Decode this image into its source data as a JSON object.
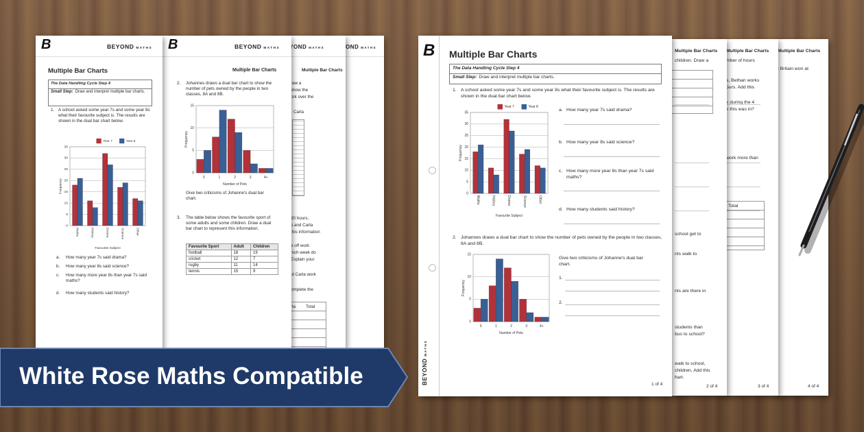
{
  "banner": {
    "text": "White Rose Maths Compatible"
  },
  "brand": {
    "logo": "B",
    "name": "BEYOND",
    "sub": "MATHS"
  },
  "worksheet": {
    "title": "Multiple Bar Charts",
    "step_label": "The Data Handling Cycle Step 4",
    "small_step_label": "Small Step:",
    "small_step": "Draw and interpret multiple bar charts.",
    "q1": {
      "number": "1.",
      "text": "A school asked some year 7s and some year 8s what their favourite subject is. The results are shown in the dual bar chart below.",
      "parts": [
        {
          "letter": "a.",
          "text": "How many year 7s said drama?"
        },
        {
          "letter": "b.",
          "text": "How many year 8s said science?"
        },
        {
          "letter": "c.",
          "text": "How many more year 8s than year 7s said maths?"
        },
        {
          "letter": "d.",
          "text": "How many students said history?"
        }
      ]
    },
    "q2": {
      "number": "2.",
      "text": "Johannes draws a dual bar chart to show the number of pets owned by the people in two classes, 8A and 8B.",
      "prompt": "Give two criticisms of Johanne's dual bar chart.",
      "answers": [
        "1.",
        "2."
      ]
    },
    "q3": {
      "number": "3.",
      "text": "The table below shows the favourite sport of some adults and some children. Draw a dual bar chart to represent this information.",
      "table": {
        "headers": [
          "Favourite Sport",
          "Adult",
          "Children"
        ],
        "rows": [
          [
            "football",
            18,
            19
          ],
          [
            "cricket",
            12,
            7
          ],
          [
            "rugby",
            11,
            14
          ],
          [
            "tennis",
            15,
            9
          ]
        ]
      }
    }
  },
  "pages": [
    "1 of 4",
    "2 of 4",
    "3 of 4",
    "4 of 4"
  ],
  "back_pages": {
    "left": [
      "Multiple Bar Charts",
      "raw a",
      "show the",
      "ork over the",
      "Carla",
      "30 hours,",
      "s and Carla",
      "this information",
      "e off work",
      "hich week do",
      "Explain your",
      "id Carla work",
      "omplete the",
      "rla",
      "Total"
    ],
    "right_2": [
      "Multiple Bar Charts",
      "children. Draw a",
      "school get to",
      "nts walk to",
      "nts are there in",
      "students than",
      "bus to school?",
      "walk to school,",
      "children. Add this",
      "hart."
    ],
    "right_3": [
      "Multiple Bar Charts",
      "mber of hours",
      "s, Bethan works",
      "ours. Add this",
      "k during the 4",
      "k this was in?",
      "work more than",
      "Total"
    ],
    "right_4": [
      "Multiple Bar Charts",
      "t Britain won at"
    ]
  },
  "chart_data": [
    {
      "type": "bar",
      "categories": [
        "Maths",
        "History",
        "Drama",
        "Science",
        "Other"
      ],
      "series": [
        {
          "name": "Year 7",
          "color": "#b3323a",
          "values": [
            18,
            11,
            32,
            17,
            12
          ]
        },
        {
          "name": "Year 8",
          "color": "#3a5f96",
          "values": [
            21,
            8,
            27,
            19,
            11
          ]
        }
      ],
      "ylim": [
        0,
        35
      ],
      "yticks": [
        0,
        5,
        10,
        15,
        20,
        25,
        30,
        35
      ],
      "y_label": "Frequency",
      "x_label": "Favourite Subject",
      "grid": true
    },
    {
      "type": "bar",
      "categories": [
        "0",
        "1",
        "2",
        "3",
        "4+"
      ],
      "series": [
        {
          "color": "#b3323a",
          "values": [
            3,
            8,
            12,
            5,
            1
          ]
        },
        {
          "color": "#3a5f96",
          "values": [
            5,
            14,
            9,
            2,
            1
          ]
        }
      ],
      "ylim": [
        0,
        15
      ],
      "yticks": [
        0,
        5,
        10,
        15
      ],
      "y_label": "Frequency",
      "x_label": "Number of Pets",
      "grid": true
    }
  ]
}
